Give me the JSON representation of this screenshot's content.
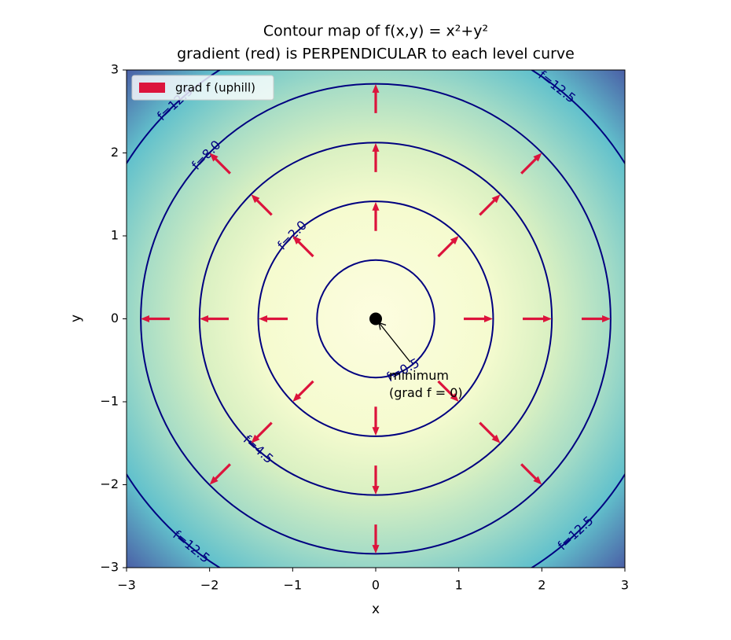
{
  "chart_data": {
    "type": "contour",
    "title": "Contour map of  f(x,y) = x²+y²",
    "subtitle": "gradient (red) is PERPENDICULAR to each level curve",
    "xlabel": "x",
    "ylabel": "y",
    "xlim": [
      -3,
      3
    ],
    "ylim": [
      -3,
      3
    ],
    "xticks": [
      {
        "value": -3,
        "label": "−3"
      },
      {
        "value": -2,
        "label": "−2"
      },
      {
        "value": -1,
        "label": "−1"
      },
      0,
      1,
      2,
      3
    ],
    "yticks": [
      {
        "value": -3,
        "label": "−3"
      },
      {
        "value": -2,
        "label": "−2"
      },
      {
        "value": -1,
        "label": "−1"
      },
      0,
      1,
      2,
      3
    ],
    "levels": [
      0.5,
      2,
      4.5,
      8,
      12.5
    ],
    "level_labels": [
      "f=0.5",
      "f=2.0",
      "f=4.5",
      "f=8.0",
      "f=12.5"
    ],
    "line_color": "#000080",
    "quiver": {
      "name": "grad f  (uphill)",
      "color": "#dc143c",
      "x": [
        1.41,
        1.0,
        0,
        -1.0,
        -1.41,
        -1.0,
        0,
        1.0,
        2.12,
        1.5,
        0,
        -1.5,
        -2.12,
        -1.5,
        0,
        1.5,
        2.83,
        2.0,
        0,
        -2.0,
        -2.83,
        -2.0,
        0,
        2.0
      ],
      "y": [
        0,
        1.0,
        1.41,
        1.0,
        0,
        -1.0,
        -1.41,
        -1.0,
        0,
        1.5,
        2.12,
        1.5,
        0,
        -1.5,
        -2.12,
        -1.5,
        0,
        2.0,
        2.83,
        2.0,
        0,
        -2.0,
        -2.83,
        -2.0
      ],
      "u": [
        2.82,
        2.0,
        0,
        -2.0,
        -2.82,
        -2.0,
        0,
        2.0,
        4.24,
        3.0,
        0,
        -3.0,
        -4.24,
        -3.0,
        0,
        3.0,
        5.66,
        4.0,
        0,
        -4.0,
        -5.66,
        -4.0,
        0,
        4.0
      ],
      "v": [
        0,
        2.0,
        2.82,
        2.0,
        0,
        -2.0,
        -2.82,
        -2.0,
        0,
        3.0,
        4.24,
        3.0,
        0,
        -3.0,
        -4.24,
        -3.0,
        0,
        4.0,
        5.66,
        4.0,
        0,
        -4.0,
        -5.66,
        -4.0
      ]
    },
    "minimum": {
      "x": 0,
      "y": 0,
      "label": [
        "minimum",
        "(grad f = 0)"
      ]
    },
    "legend": "upper left"
  }
}
